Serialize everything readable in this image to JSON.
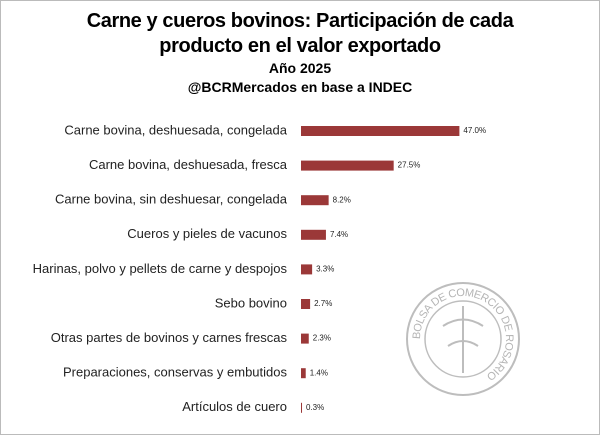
{
  "chart_data": {
    "type": "bar",
    "orientation": "horizontal",
    "title": "Carne y cueros bovinos: Participación de cada producto en el valor exportado",
    "subtitle": "Año 2025",
    "source": "@BCRMercados en base a INDEC",
    "watermark": "BOLSA DE COMERCIO DE ROSARIO",
    "categories": [
      "Carne bovina, deshuesada, congelada",
      "Carne bovina, deshuesada, fresca",
      "Carne bovina, sin deshuesar, congelada",
      "Cueros y pieles de vacunos",
      "Harinas, polvo y pellets de carne y despojos",
      "Sebo bovino",
      "Otras partes de bovinos y carnes frescas",
      "Preparaciones, conservas y embutidos",
      "Artículos de cuero"
    ],
    "values": [
      47.0,
      27.5,
      8.2,
      7.4,
      3.3,
      2.7,
      2.3,
      1.4,
      0.3
    ],
    "value_labels": [
      "47.0%",
      "27.5%",
      "8.2%",
      "7.4%",
      "3.3%",
      "2.7%",
      "2.3%",
      "1.4%",
      "0.3%"
    ],
    "color": "#9b3838"
  }
}
